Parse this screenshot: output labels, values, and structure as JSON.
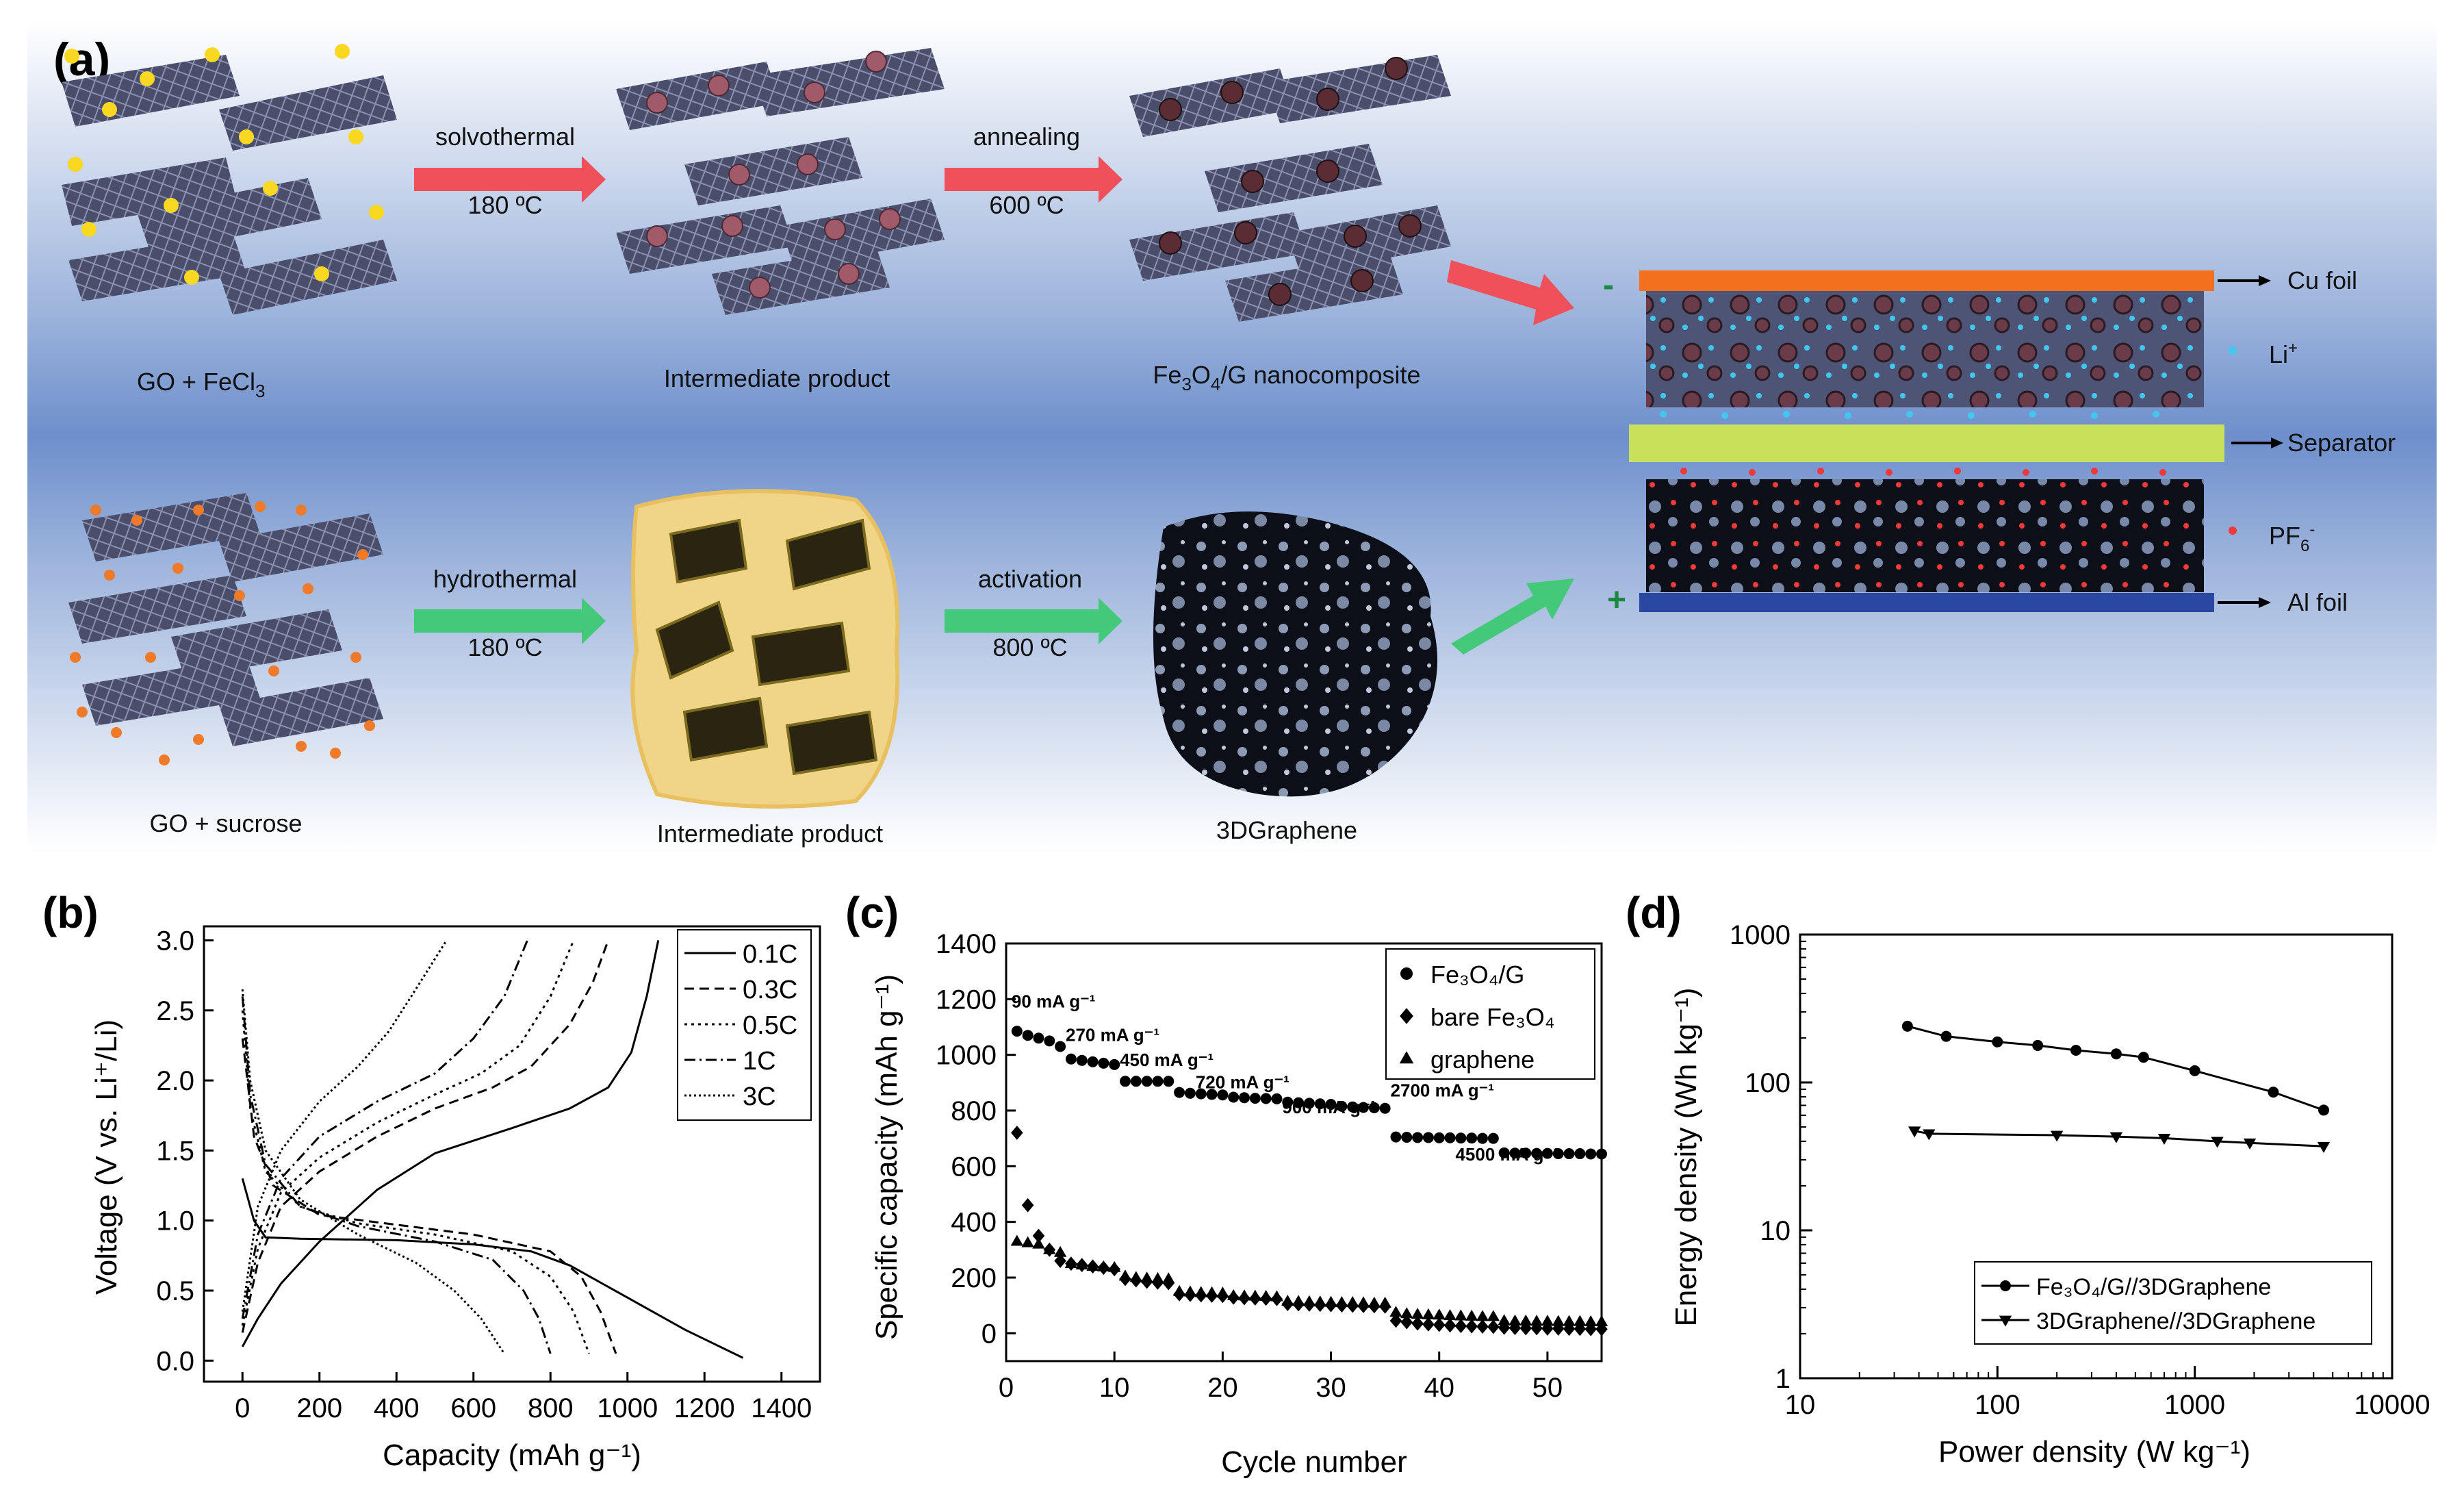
{
  "panel_a": {
    "label": "(a)",
    "top_row": {
      "start_label": "GO + FeCl",
      "start_sub": "3",
      "step1_top": "solvothermal",
      "step1_bottom": "180 ºC",
      "mid_label": "Intermediate product",
      "step2_top": "annealing",
      "step2_bottom": "600 ºC",
      "end_label_pre": "Fe",
      "end_sub1": "3",
      "end_mid": "O",
      "end_sub2": "4",
      "end_post": "/G nanocomposite"
    },
    "bottom_row": {
      "start_label": "GO + sucrose",
      "step1_top": "hydrothermal",
      "step1_bottom": "180 ºC",
      "mid_label": "Intermediate product",
      "step2_top": "activation",
      "step2_bottom": "800 ºC",
      "end_label": "3DGraphene"
    },
    "device": {
      "minus": "-",
      "plus": "+",
      "cu_foil": "Cu foil",
      "li_ion": "Li",
      "li_sup": "+",
      "separator": "Separator",
      "pf6": "PF",
      "pf6_sub": "6",
      "pf6_sup": "-",
      "al_foil": "Al foil"
    },
    "colors": {
      "red_arrow": "#f0505a",
      "green_arrow": "#44c87a",
      "cu": "#f2701e",
      "separator": "#c8e05a",
      "al": "#2a48a0",
      "li_dot": "#40c8f0",
      "pf6_dot": "#f03a3a",
      "fecl3_dot": "#f8d820",
      "sucrose_dot": "#f07a28"
    }
  },
  "chart_data": [
    {
      "panel": "(b)",
      "type": "line",
      "xlabel": "Capacity (mAh g⁻¹)",
      "ylabel": "Voltage (V vs. Li⁺/Li)",
      "xlim": [
        -100,
        1500
      ],
      "ylim": [
        -0.15,
        3.1
      ],
      "xticks": [
        "0",
        "200",
        "400",
        "600",
        "800",
        "1000",
        "1200",
        "1400"
      ],
      "yticks": [
        "0.0",
        "0.5",
        "1.0",
        "1.5",
        "2.0",
        "2.5",
        "3.0"
      ],
      "legend_position": "top-right",
      "series": [
        {
          "name": "0.1C",
          "dash": "solid",
          "discharge": [
            [
              0,
              1.3
            ],
            [
              30,
              1.0
            ],
            [
              60,
              0.88
            ],
            [
              150,
              0.87
            ],
            [
              400,
              0.86
            ],
            [
              600,
              0.83
            ],
            [
              750,
              0.78
            ],
            [
              850,
              0.68
            ],
            [
              1000,
              0.45
            ],
            [
              1150,
              0.22
            ],
            [
              1300,
              0.02
            ]
          ],
          "charge": [
            [
              0,
              0.1
            ],
            [
              40,
              0.3
            ],
            [
              100,
              0.55
            ],
            [
              200,
              0.85
            ],
            [
              350,
              1.22
            ],
            [
              500,
              1.48
            ],
            [
              700,
              1.66
            ],
            [
              850,
              1.8
            ],
            [
              950,
              1.95
            ],
            [
              1010,
              2.2
            ],
            [
              1050,
              2.6
            ],
            [
              1080,
              3.0
            ]
          ]
        },
        {
          "name": "0.3C",
          "dash": "14,8",
          "discharge": [
            [
              0,
              2.3
            ],
            [
              30,
              1.6
            ],
            [
              80,
              1.25
            ],
            [
              200,
              1.04
            ],
            [
              400,
              0.97
            ],
            [
              600,
              0.9
            ],
            [
              800,
              0.78
            ],
            [
              880,
              0.6
            ],
            [
              930,
              0.35
            ],
            [
              970,
              0.05
            ]
          ],
          "charge": [
            [
              0,
              0.2
            ],
            [
              40,
              0.7
            ],
            [
              100,
              1.1
            ],
            [
              200,
              1.35
            ],
            [
              350,
              1.6
            ],
            [
              500,
              1.8
            ],
            [
              650,
              1.95
            ],
            [
              750,
              2.1
            ],
            [
              850,
              2.4
            ],
            [
              910,
              2.7
            ],
            [
              950,
              3.0
            ]
          ]
        },
        {
          "name": "0.5C",
          "dash": "4,6",
          "discharge": [
            [
              0,
              2.5
            ],
            [
              20,
              1.8
            ],
            [
              60,
              1.35
            ],
            [
              150,
              1.1
            ],
            [
              300,
              0.98
            ],
            [
              500,
              0.9
            ],
            [
              700,
              0.78
            ],
            [
              800,
              0.6
            ],
            [
              860,
              0.35
            ],
            [
              900,
              0.05
            ]
          ],
          "charge": [
            [
              0,
              0.25
            ],
            [
              40,
              0.8
            ],
            [
              100,
              1.2
            ],
            [
              200,
              1.45
            ],
            [
              350,
              1.7
            ],
            [
              500,
              1.9
            ],
            [
              620,
              2.05
            ],
            [
              720,
              2.25
            ],
            [
              800,
              2.6
            ],
            [
              860,
              3.0
            ]
          ]
        },
        {
          "name": "1C",
          "dash": "16,6,3,6",
          "discharge": [
            [
              0,
              2.6
            ],
            [
              20,
              1.9
            ],
            [
              60,
              1.4
            ],
            [
              150,
              1.1
            ],
            [
              300,
              0.96
            ],
            [
              500,
              0.85
            ],
            [
              650,
              0.72
            ],
            [
              730,
              0.5
            ],
            [
              770,
              0.3
            ],
            [
              800,
              0.05
            ]
          ],
          "charge": [
            [
              0,
              0.3
            ],
            [
              40,
              0.9
            ],
            [
              100,
              1.3
            ],
            [
              200,
              1.6
            ],
            [
              350,
              1.85
            ],
            [
              500,
              2.05
            ],
            [
              600,
              2.3
            ],
            [
              680,
              2.6
            ],
            [
              740,
              3.0
            ]
          ]
        },
        {
          "name": "3C",
          "dash": "3,4",
          "discharge": [
            [
              0,
              2.65
            ],
            [
              20,
              2.0
            ],
            [
              60,
              1.5
            ],
            [
              150,
              1.15
            ],
            [
              300,
              0.9
            ],
            [
              450,
              0.7
            ],
            [
              550,
              0.5
            ],
            [
              620,
              0.3
            ],
            [
              680,
              0.05
            ]
          ],
          "charge": [
            [
              0,
              0.35
            ],
            [
              40,
              1.1
            ],
            [
              100,
              1.5
            ],
            [
              200,
              1.85
            ],
            [
              300,
              2.1
            ],
            [
              380,
              2.35
            ],
            [
              450,
              2.65
            ],
            [
              530,
              3.0
            ]
          ]
        }
      ]
    },
    {
      "panel": "(c)",
      "type": "scatter",
      "xlabel": "Cycle number",
      "ylabel": "Specific capacity (mAh g⁻¹)",
      "xlim": [
        0,
        55
      ],
      "ylim": [
        -100,
        1400
      ],
      "xticks": [
        "0",
        "10",
        "20",
        "30",
        "40",
        "50"
      ],
      "yticks": [
        "0",
        "200",
        "400",
        "600",
        "800",
        "1000",
        "1200",
        "1400"
      ],
      "legend_position": "top-right",
      "annotations": [
        {
          "text": "90 mA g⁻¹",
          "x": 0.5,
          "y": 1170
        },
        {
          "text": "270 mA g⁻¹",
          "x": 5.5,
          "y": 1050
        },
        {
          "text": "450 mA g⁻¹",
          "x": 10.5,
          "y": 960
        },
        {
          "text": "720 mA g⁻¹",
          "x": 17.5,
          "y": 880
        },
        {
          "text": "900 mA g⁻¹",
          "x": 25.5,
          "y": 790
        },
        {
          "text": "2700 mA g⁻¹",
          "x": 35.5,
          "y": 850
        },
        {
          "text": "4500 mA g⁻¹",
          "x": 41.5,
          "y": 620
        }
      ],
      "series": [
        {
          "name": "Fe₃O₄/G",
          "marker": "circle",
          "x": [
            1,
            2,
            3,
            4,
            5,
            6,
            7,
            8,
            9,
            10,
            11,
            12,
            13,
            14,
            15,
            16,
            17,
            18,
            19,
            20,
            21,
            22,
            23,
            24,
            25,
            26,
            27,
            28,
            29,
            30,
            31,
            32,
            33,
            34,
            35,
            36,
            37,
            38,
            39,
            40,
            41,
            42,
            43,
            44,
            45,
            46,
            47,
            48,
            49,
            50,
            51,
            52,
            53,
            54,
            55
          ],
          "y": [
            1085,
            1070,
            1060,
            1050,
            1030,
            985,
            980,
            975,
            970,
            965,
            905,
            905,
            905,
            905,
            905,
            865,
            862,
            860,
            858,
            856,
            848,
            846,
            844,
            843,
            842,
            830,
            828,
            826,
            824,
            822,
            815,
            813,
            811,
            810,
            808,
            705,
            704,
            703,
            703,
            702,
            702,
            701,
            701,
            700,
            700,
            648,
            647,
            647,
            646,
            646,
            645,
            645,
            645,
            644,
            644
          ]
        },
        {
          "name": "bare Fe₃O₄",
          "marker": "diamond",
          "x": [
            1,
            2,
            3,
            4,
            5,
            6,
            7,
            8,
            9,
            10,
            11,
            12,
            13,
            14,
            15,
            16,
            17,
            18,
            19,
            20,
            21,
            22,
            23,
            24,
            25,
            26,
            27,
            28,
            29,
            30,
            31,
            32,
            33,
            34,
            35,
            36,
            37,
            38,
            39,
            40,
            41,
            42,
            43,
            44,
            45,
            46,
            47,
            48,
            49,
            50,
            51,
            52,
            53,
            54,
            55
          ],
          "y": [
            720,
            460,
            350,
            300,
            260,
            250,
            245,
            240,
            235,
            230,
            195,
            190,
            185,
            182,
            180,
            140,
            138,
            136,
            135,
            134,
            128,
            126,
            125,
            124,
            123,
            105,
            104,
            103,
            102,
            101,
            100,
            99,
            98,
            97,
            96,
            45,
            40,
            35,
            32,
            30,
            28,
            26,
            25,
            24,
            23,
            20,
            19,
            18,
            18,
            17,
            17,
            16,
            16,
            15,
            15
          ]
        },
        {
          "name": "graphene",
          "marker": "triangle",
          "x": [
            1,
            2,
            3,
            4,
            5,
            6,
            7,
            8,
            9,
            10,
            11,
            12,
            13,
            14,
            15,
            16,
            17,
            18,
            19,
            20,
            21,
            22,
            23,
            24,
            25,
            26,
            27,
            28,
            29,
            30,
            31,
            32,
            33,
            34,
            35,
            36,
            37,
            38,
            39,
            40,
            41,
            42,
            43,
            44,
            45,
            46,
            47,
            48,
            49,
            50,
            51,
            52,
            53,
            54,
            55
          ],
          "y": [
            330,
            325,
            320,
            300,
            290,
            250,
            245,
            240,
            238,
            236,
            205,
            200,
            198,
            196,
            195,
            150,
            148,
            146,
            145,
            144,
            135,
            134,
            133,
            132,
            131,
            115,
            114,
            113,
            112,
            111,
            110,
            110,
            109,
            108,
            108,
            75,
            70,
            68,
            66,
            65,
            63,
            62,
            61,
            60,
            60,
            45,
            44,
            44,
            43,
            43,
            42,
            42,
            42,
            41,
            41
          ]
        }
      ]
    },
    {
      "panel": "(d)",
      "type": "line",
      "xlabel": "Power density (W kg⁻¹)",
      "ylabel": "Energy density (Wh kg⁻¹)",
      "xscale": "log",
      "yscale": "log",
      "xlim": [
        10,
        10000
      ],
      "ylim": [
        1,
        1000
      ],
      "xticks": [
        "10",
        "100",
        "1000",
        "10000"
      ],
      "yticks": [
        "1",
        "10",
        "100",
        "1000"
      ],
      "legend_position": "bottom-right",
      "series": [
        {
          "name": "Fe₃O₄/G//3DGraphene",
          "marker": "circle",
          "x": [
            35,
            55,
            100,
            160,
            250,
            400,
            550,
            1000,
            2500,
            4500
          ],
          "y": [
            240,
            205,
            188,
            178,
            165,
            156,
            148,
            120,
            86,
            65
          ]
        },
        {
          "name": "3DGraphene//3DGraphene",
          "marker": "triangle-down",
          "x": [
            38,
            45,
            200,
            400,
            700,
            1300,
            1900,
            4500
          ],
          "y": [
            47,
            45,
            44,
            43,
            42,
            40,
            39,
            37
          ]
        }
      ]
    }
  ]
}
